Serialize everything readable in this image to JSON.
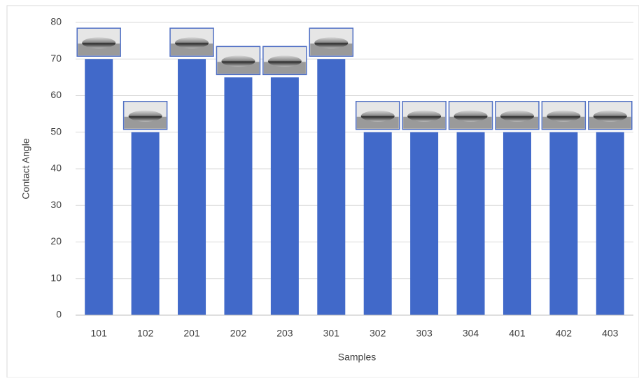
{
  "chart_data": {
    "type": "bar",
    "x_label": "Samples",
    "y_label": "Contact Angle",
    "categories": [
      "101",
      "102",
      "201",
      "202",
      "203",
      "301",
      "302",
      "303",
      "304",
      "401",
      "402",
      "403"
    ],
    "values": [
      70,
      50,
      70,
      65,
      65,
      70,
      50,
      50,
      50,
      50,
      50,
      50
    ],
    "color": "#4169c9",
    "ylim": [
      0,
      80
    ],
    "yticks": [
      0,
      10,
      20,
      30,
      40,
      50,
      60,
      70,
      80
    ],
    "grid": true
  }
}
